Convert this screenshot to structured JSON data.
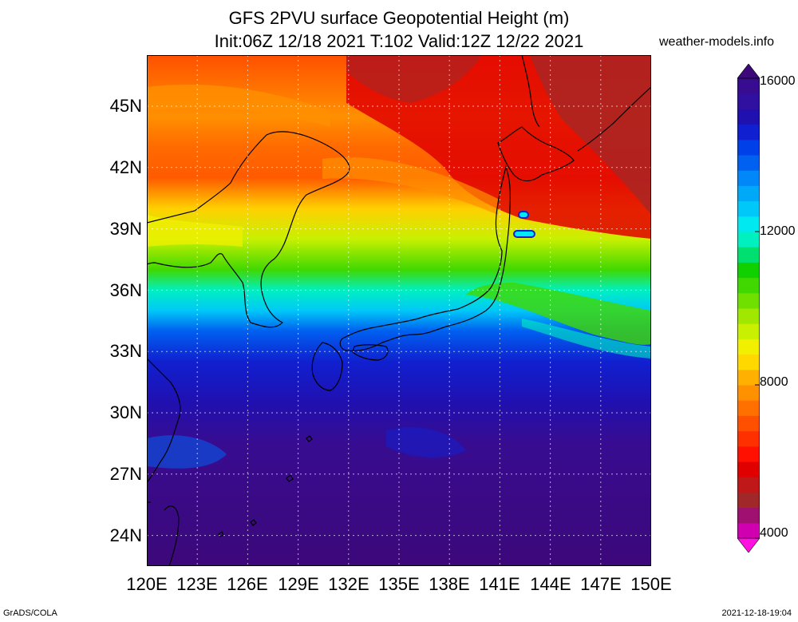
{
  "title": {
    "line1": "GFS 2PVU surface Geopotential Height (m)",
    "line2": "Init:06Z 12/18 2021 T:102 Valid:12Z 12/22 2021"
  },
  "site_label": "weather-models.info",
  "map": {
    "lon_range": [
      120,
      150
    ],
    "lat_range": [
      22.5,
      47.5
    ],
    "lat_ticks": [
      "45N",
      "42N",
      "39N",
      "36N",
      "33N",
      "30N",
      "27N",
      "24N"
    ],
    "lon_ticks": [
      "120E",
      "123E",
      "126E",
      "129E",
      "132E",
      "135E",
      "138E",
      "141E",
      "144E",
      "147E",
      "150E"
    ],
    "gridlines": "dotted",
    "field": "Geopotential Height (m) on 2PVU surface",
    "field_range": [
      4000,
      16000
    ]
  },
  "colorbar": {
    "labels": [
      "16000",
      "12000",
      "8000",
      "4000"
    ],
    "colors": [
      "#ff10e0",
      "#d000b0",
      "#a01070",
      "#a02828",
      "#c01818",
      "#e00000",
      "#ff1000",
      "#ff3000",
      "#ff5000",
      "#ff7000",
      "#ff9000",
      "#ffb000",
      "#ffd800",
      "#f0f000",
      "#c8f000",
      "#a0e800",
      "#70e000",
      "#40d800",
      "#10d000",
      "#00e070",
      "#00f0c0",
      "#00e8f0",
      "#00c8f8",
      "#00a8f8",
      "#0088f8",
      "#0060f0",
      "#0040e8",
      "#1020d0",
      "#2010b0",
      "#3010a0",
      "#380c90",
      "#3c087a"
    ]
  },
  "footer": {
    "left": "GrADS/COLA",
    "right": "2021-12-18-19:04"
  }
}
